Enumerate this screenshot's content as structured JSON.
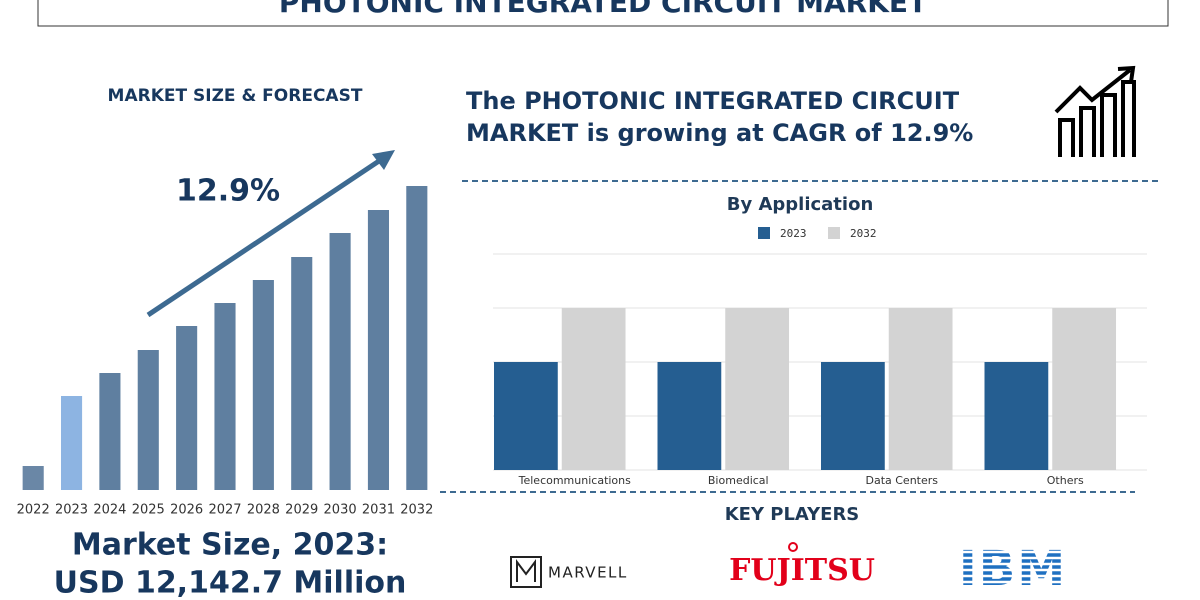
{
  "header": {
    "title": "PHOTONIC INTEGRATED CIRCUIT MARKET"
  },
  "headline": {
    "lines": [
      "The PHOTONIC INTEGRATED CIRCUIT",
      "MARKET is growing at CAGR of 12.9%"
    ]
  },
  "market_size": {
    "lines": [
      "Market Size, 2023:",
      "USD 12,142.7 Million"
    ]
  },
  "key_players": {
    "title": "KEY PLAYERS",
    "names": [
      "MARVELL",
      "FUJITSU",
      "IBM"
    ]
  },
  "chart_data": [
    {
      "type": "bar",
      "title": "MARKET SIZE & FORECAST",
      "annotation": "12.9%",
      "categories": [
        "2022",
        "2023",
        "2024",
        "2025",
        "2026",
        "2027",
        "2028",
        "2029",
        "2030",
        "2031",
        "2032"
      ],
      "values": [
        24,
        94,
        117,
        140,
        164,
        187,
        210,
        233,
        257,
        280,
        304
      ],
      "colors": [
        "#6a87a6",
        "#8db4e2",
        "#5f7fa0",
        "#5f7fa0",
        "#5f7fa0",
        "#5f7fa0",
        "#5f7fa0",
        "#5f7fa0",
        "#5f7fa0",
        "#5f7fa0",
        "#5f7fa0"
      ]
    },
    {
      "type": "bar",
      "title": "By Application",
      "categories": [
        "Telecommunications",
        "Biomedical",
        "Data Centers",
        "Others"
      ],
      "series": [
        {
          "name": "2023",
          "color": "#255e91",
          "values": [
            2,
            2,
            2,
            2
          ]
        },
        {
          "name": "2032",
          "color": "#d3d3d3",
          "values": [
            3,
            3,
            3,
            3
          ]
        }
      ],
      "ylim": [
        0,
        4
      ],
      "yticks": [
        0,
        1,
        2,
        3,
        4
      ],
      "grid": true
    }
  ]
}
